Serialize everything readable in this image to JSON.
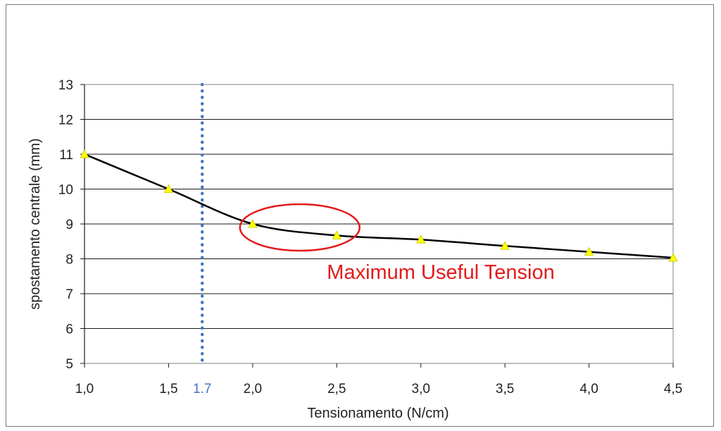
{
  "chart_data": {
    "type": "line",
    "title": "",
    "xlabel": "Tensionamento (N/cm)",
    "ylabel": "spostamento centrale (mm)",
    "x_tick_labels": [
      "1,0",
      "1,5",
      "2,0",
      "2,5",
      "3,0",
      "3,5",
      "4,0",
      "4,5"
    ],
    "x_ticks": [
      1.0,
      1.5,
      2.0,
      2.5,
      3.0,
      3.5,
      4.0,
      4.5
    ],
    "y_ticks": [
      5,
      6,
      7,
      8,
      9,
      10,
      11,
      12,
      13
    ],
    "xlim": [
      1.0,
      4.5
    ],
    "ylim": [
      5,
      13
    ],
    "grid": "horizontal",
    "series": [
      {
        "x": [
          1.0,
          1.5,
          2.0,
          2.5,
          3.0,
          3.5,
          4.0,
          4.5
        ],
        "y": [
          11.0,
          10.0,
          9.0,
          8.67,
          8.55,
          8.37,
          8.2,
          8.03
        ],
        "line_color": "#000000",
        "marker": "triangle",
        "marker_color": "#ffff00"
      }
    ],
    "reference_line": {
      "x": 1.7,
      "label": "1.7",
      "color": "#4472c4",
      "style": "dotted"
    },
    "annotation": {
      "text": "Maximum Useful Tension",
      "color": "#e31b1b",
      "ellipse_center": [
        2.28,
        8.9
      ]
    }
  }
}
